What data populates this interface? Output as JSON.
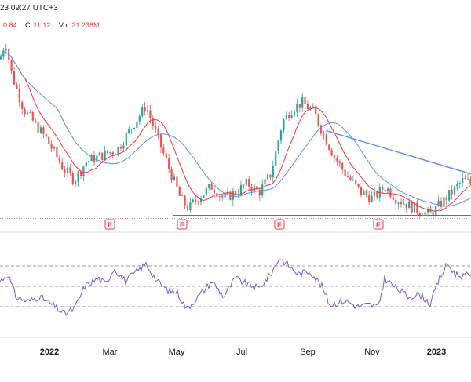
{
  "header": {
    "time_text": "23 09:27 UTC+3",
    "ohlc": [
      {
        "label": "",
        "value": "0.84"
      },
      {
        "label": "C",
        "value": "11.12"
      },
      {
        "label": "Vol",
        "value": "21.238M"
      }
    ]
  },
  "colors": {
    "up": "#26a69a",
    "down": "#ef5350",
    "ma_fast": "#f23645",
    "ma_slow": "#5b8def",
    "trendline": "#5b8def",
    "rsi": "#7e57c2",
    "event_marker": "#f23645"
  },
  "event_marker_glyph": "E",
  "chart_data": [
    {
      "type": "candlestick",
      "panel": "price",
      "price_range": [
        9,
        40
      ],
      "key_points": [
        {
          "x": 0,
          "close": 35.5
        },
        {
          "x": 7,
          "close": 38.5
        },
        {
          "x": 15,
          "close": 33
        },
        {
          "x": 30,
          "close": 27.5
        },
        {
          "x": 60,
          "close": 22.5
        },
        {
          "x": 80,
          "close": 18
        },
        {
          "x": 95,
          "close": 16
        },
        {
          "x": 110,
          "close": 19
        },
        {
          "x": 130,
          "close": 20
        },
        {
          "x": 150,
          "close": 21
        },
        {
          "x": 170,
          "close": 25
        },
        {
          "x": 186,
          "close": 28
        },
        {
          "x": 200,
          "close": 23
        },
        {
          "x": 215,
          "close": 18
        },
        {
          "x": 230,
          "close": 13
        },
        {
          "x": 240,
          "close": 11.5
        },
        {
          "x": 255,
          "close": 13.5
        },
        {
          "x": 270,
          "close": 15
        },
        {
          "x": 285,
          "close": 13
        },
        {
          "x": 300,
          "close": 14
        },
        {
          "x": 315,
          "close": 15.5
        },
        {
          "x": 330,
          "close": 14
        },
        {
          "x": 345,
          "close": 17
        },
        {
          "x": 360,
          "close": 25.5
        },
        {
          "x": 372,
          "close": 27.5
        },
        {
          "x": 385,
          "close": 28.5
        },
        {
          "x": 400,
          "close": 27
        },
        {
          "x": 410,
          "close": 24
        },
        {
          "x": 425,
          "close": 20
        },
        {
          "x": 440,
          "close": 17
        },
        {
          "x": 460,
          "close": 14
        },
        {
          "x": 475,
          "close": 13
        },
        {
          "x": 490,
          "close": 15
        },
        {
          "x": 505,
          "close": 13
        },
        {
          "x": 520,
          "close": 12
        },
        {
          "x": 535,
          "close": 11
        },
        {
          "x": 548,
          "close": 10.5
        },
        {
          "x": 560,
          "close": 12
        },
        {
          "x": 575,
          "close": 14
        },
        {
          "x": 590,
          "close": 16
        },
        {
          "x": 600,
          "close": 15.5
        }
      ],
      "trendline": [
        {
          "x": 415,
          "y": 24
        },
        {
          "x": 600,
          "y": 17
        }
      ],
      "support_level": 10.3,
      "resistance_level": 10.2,
      "earnings_markers_x": [
        140,
        232,
        356,
        482
      ]
    },
    {
      "type": "line",
      "panel": "rsi",
      "series_name": "",
      "ylim": [
        0,
        100
      ],
      "levels": [
        70,
        50,
        30
      ],
      "key_points": [
        {
          "x": 0,
          "y": 55
        },
        {
          "x": 10,
          "y": 62
        },
        {
          "x": 20,
          "y": 40
        },
        {
          "x": 35,
          "y": 35
        },
        {
          "x": 50,
          "y": 40
        },
        {
          "x": 70,
          "y": 30
        },
        {
          "x": 82,
          "y": 23
        },
        {
          "x": 95,
          "y": 28
        },
        {
          "x": 108,
          "y": 50
        },
        {
          "x": 125,
          "y": 58
        },
        {
          "x": 135,
          "y": 52
        },
        {
          "x": 145,
          "y": 68
        },
        {
          "x": 160,
          "y": 55
        },
        {
          "x": 172,
          "y": 63
        },
        {
          "x": 186,
          "y": 72
        },
        {
          "x": 200,
          "y": 55
        },
        {
          "x": 215,
          "y": 45
        },
        {
          "x": 225,
          "y": 45
        },
        {
          "x": 238,
          "y": 28
        },
        {
          "x": 255,
          "y": 42
        },
        {
          "x": 270,
          "y": 55
        },
        {
          "x": 285,
          "y": 40
        },
        {
          "x": 300,
          "y": 58
        },
        {
          "x": 315,
          "y": 52
        },
        {
          "x": 330,
          "y": 48
        },
        {
          "x": 345,
          "y": 62
        },
        {
          "x": 356,
          "y": 78
        },
        {
          "x": 368,
          "y": 70
        },
        {
          "x": 380,
          "y": 62
        },
        {
          "x": 395,
          "y": 65
        },
        {
          "x": 410,
          "y": 50
        },
        {
          "x": 420,
          "y": 32
        },
        {
          "x": 440,
          "y": 36
        },
        {
          "x": 455,
          "y": 30
        },
        {
          "x": 470,
          "y": 32
        },
        {
          "x": 482,
          "y": 30
        },
        {
          "x": 490,
          "y": 58
        },
        {
          "x": 505,
          "y": 48
        },
        {
          "x": 520,
          "y": 40
        },
        {
          "x": 535,
          "y": 42
        },
        {
          "x": 548,
          "y": 33
        },
        {
          "x": 560,
          "y": 58
        },
        {
          "x": 570,
          "y": 72
        },
        {
          "x": 580,
          "y": 62
        },
        {
          "x": 590,
          "y": 60
        },
        {
          "x": 600,
          "y": 62
        }
      ]
    }
  ],
  "x_axis": {
    "labels": [
      {
        "text": "2022",
        "x": 63,
        "bold": true
      },
      {
        "text": "Mar",
        "x": 140,
        "bold": false
      },
      {
        "text": "May",
        "x": 225,
        "bold": false
      },
      {
        "text": "Jul",
        "x": 308,
        "bold": false
      },
      {
        "text": "Sep",
        "x": 392,
        "bold": false
      },
      {
        "text": "Nov",
        "x": 474,
        "bold": false
      },
      {
        "text": "2023",
        "x": 556,
        "bold": true
      }
    ]
  }
}
